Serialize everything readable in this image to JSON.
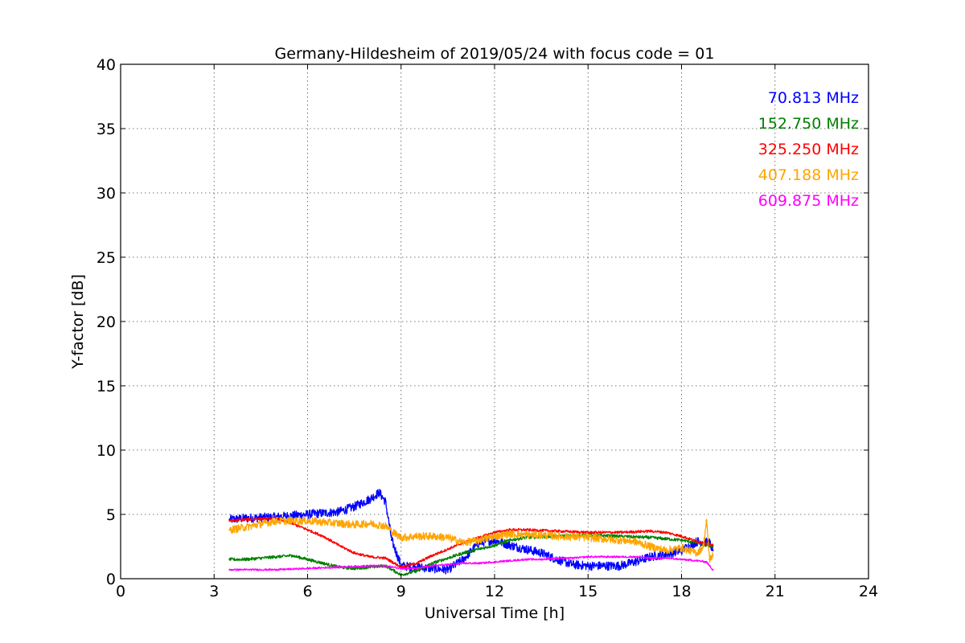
{
  "chart_data": {
    "type": "line",
    "title": "Germany-Hildesheim of 2019/05/24 with focus code = 01",
    "xlabel": "Universal Time [h]",
    "ylabel": "Y-factor [dB]",
    "xlim": [
      0,
      24
    ],
    "ylim": [
      0,
      40
    ],
    "xticks": [
      0,
      3,
      6,
      9,
      12,
      15,
      18,
      21,
      24
    ],
    "yticks": [
      0,
      5,
      10,
      15,
      20,
      25,
      30,
      35,
      40
    ],
    "grid": true,
    "legend_position": "top-right",
    "series": [
      {
        "name": "70.813 MHz",
        "color": "#0000ff",
        "noise": 0.35,
        "x": [
          3.5,
          4.0,
          5.0,
          6.0,
          7.0,
          7.5,
          8.0,
          8.3,
          8.5,
          8.7,
          9.0,
          9.5,
          10.0,
          10.5,
          11.0,
          11.5,
          12.0,
          12.5,
          13.0,
          13.5,
          14.0,
          14.5,
          15.0,
          15.5,
          16.0,
          16.5,
          17.0,
          17.5,
          18.0,
          18.5,
          18.9,
          19.0
        ],
        "y": [
          4.6,
          4.7,
          4.8,
          5.0,
          5.2,
          5.6,
          6.2,
          6.7,
          6.0,
          3.0,
          1.0,
          0.9,
          0.8,
          0.7,
          1.5,
          2.8,
          3.0,
          2.6,
          2.3,
          2.0,
          1.5,
          1.1,
          1.0,
          1.0,
          1.0,
          1.3,
          1.7,
          1.9,
          2.2,
          2.9,
          2.8,
          2.2
        ]
      },
      {
        "name": "152.750 MHz",
        "color": "#008000",
        "noise": 0.12,
        "x": [
          3.5,
          4.0,
          5.0,
          5.5,
          6.0,
          6.5,
          7.0,
          7.5,
          8.0,
          8.5,
          9.0,
          9.5,
          10.0,
          10.5,
          11.0,
          11.5,
          12.0,
          12.5,
          13.0,
          14.0,
          15.0,
          16.0,
          17.0,
          18.0,
          18.5,
          19.0
        ],
        "y": [
          1.5,
          1.5,
          1.7,
          1.8,
          1.5,
          1.2,
          0.9,
          0.8,
          0.9,
          1.0,
          0.3,
          0.6,
          1.2,
          1.6,
          2.0,
          2.3,
          2.6,
          3.0,
          3.2,
          3.3,
          3.4,
          3.3,
          3.2,
          3.0,
          2.8,
          2.5
        ]
      },
      {
        "name": "325.250 MHz",
        "color": "#ff0000",
        "noise": 0.1,
        "x": [
          3.5,
          4.0,
          5.0,
          5.5,
          6.0,
          6.5,
          7.0,
          7.5,
          8.0,
          8.5,
          9.0,
          9.5,
          10.0,
          10.5,
          11.0,
          11.5,
          12.0,
          12.5,
          13.0,
          14.0,
          15.0,
          16.0,
          17.0,
          17.5,
          18.0,
          18.5,
          19.0
        ],
        "y": [
          4.5,
          4.6,
          4.7,
          4.3,
          3.8,
          3.3,
          2.6,
          2.0,
          1.7,
          1.6,
          0.9,
          1.2,
          1.8,
          2.3,
          2.8,
          3.2,
          3.6,
          3.8,
          3.8,
          3.7,
          3.6,
          3.6,
          3.7,
          3.6,
          3.3,
          2.9,
          2.6
        ]
      },
      {
        "name": "407.188 MHz",
        "color": "#ffa500",
        "noise": 0.3,
        "x": [
          3.5,
          4.0,
          5.0,
          6.0,
          7.0,
          7.5,
          8.0,
          8.5,
          8.8,
          9.0,
          9.5,
          10.0,
          10.5,
          11.0,
          11.5,
          12.0,
          12.5,
          13.0,
          13.5,
          14.0,
          15.0,
          16.0,
          16.5,
          17.0,
          17.5,
          18.0,
          18.5,
          18.7,
          18.8,
          18.9,
          19.0
        ],
        "y": [
          3.8,
          4.0,
          4.5,
          4.5,
          4.3,
          4.2,
          4.3,
          4.1,
          3.5,
          3.2,
          3.3,
          3.3,
          3.2,
          2.8,
          3.0,
          3.3,
          3.5,
          3.4,
          3.4,
          3.3,
          3.2,
          3.0,
          2.9,
          2.5,
          2.2,
          2.4,
          2.0,
          2.5,
          4.5,
          1.5,
          1.8
        ]
      },
      {
        "name": "609.875 MHz",
        "color": "#ff00ff",
        "noise": 0.07,
        "x": [
          3.5,
          4.0,
          5.0,
          6.0,
          7.0,
          8.0,
          8.5,
          9.0,
          9.5,
          10.0,
          10.5,
          11.0,
          11.5,
          12.0,
          12.5,
          13.0,
          13.5,
          14.0,
          14.5,
          15.0,
          15.5,
          16.0,
          16.5,
          17.0,
          17.5,
          18.0,
          18.5,
          18.8,
          19.0
        ],
        "y": [
          0.7,
          0.7,
          0.7,
          0.8,
          0.9,
          1.0,
          1.0,
          0.8,
          0.8,
          1.0,
          1.1,
          1.2,
          1.2,
          1.3,
          1.4,
          1.5,
          1.5,
          1.6,
          1.6,
          1.7,
          1.7,
          1.7,
          1.7,
          1.6,
          1.6,
          1.5,
          1.4,
          1.3,
          0.7
        ]
      }
    ]
  }
}
